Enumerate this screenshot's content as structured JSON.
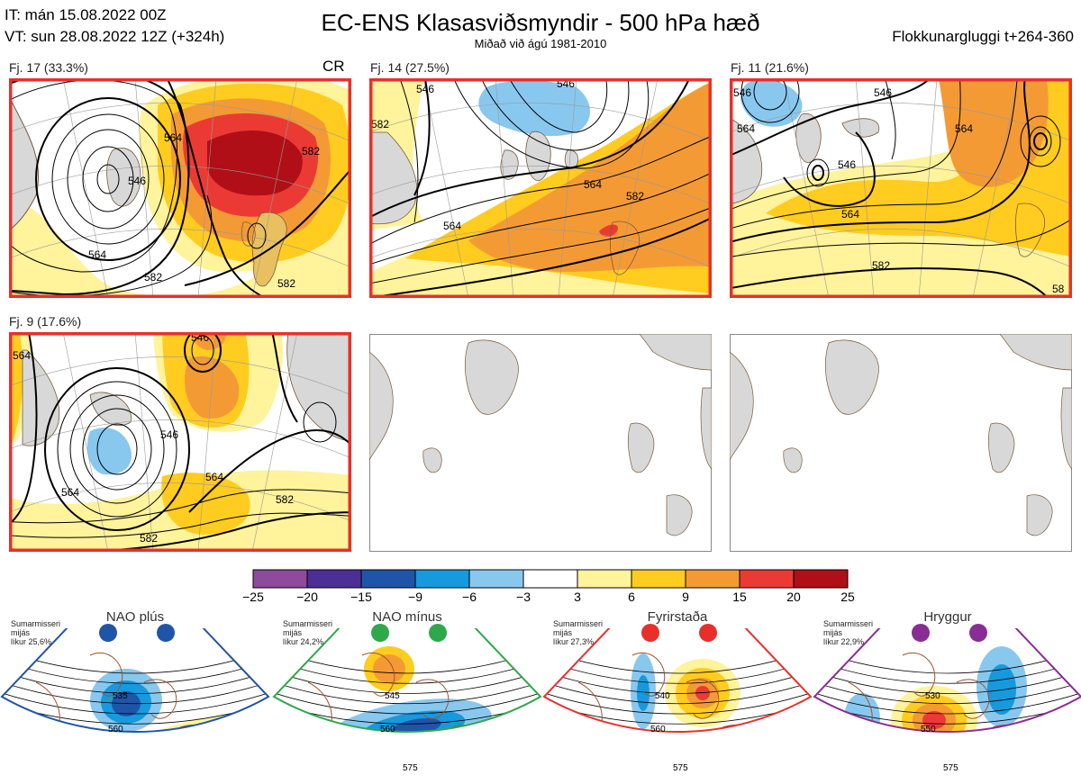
{
  "header": {
    "it_line": "IT: mán 15.08.2022 00Z",
    "vt_line": "VT: sun 28.08.2022 12Z  (+324h)",
    "title": "EC-ENS Klasasviðsmyndir - 500 hPa hæð",
    "subtitle": "Miðað við ágú 1981-2010",
    "window": "Flokkunargluggi t+264-360"
  },
  "panels": [
    {
      "label": "Fj. 17 (33.3%)",
      "tag": "CR"
    },
    {
      "label": "Fj. 14 (27.5%)"
    },
    {
      "label": "Fj. 11 (21.6%)"
    },
    {
      "label": "Fj. 9 (17.6%)"
    }
  ],
  "colors": {
    "frame": "#e8302a",
    "land": "#d8d8d8",
    "coast": "#7a5a3a"
  },
  "chart_data": {
    "type": "heatmap",
    "colorbar": {
      "ticks": [
        "−25",
        "−20",
        "−15",
        "−9",
        "−6",
        "−3",
        "3",
        "6",
        "9",
        "15",
        "20",
        "25"
      ],
      "colors": [
        "#8e4a9c",
        "#4b2f96",
        "#1f55a8",
        "#1799dd",
        "#88c8ef",
        "#ffffff",
        "#fff39b",
        "#ffcc1f",
        "#f49a35",
        "#eb3a33",
        "#b00f17"
      ]
    },
    "contour_labels": {
      "p1": [
        "546",
        "564",
        "564",
        "582",
        "582",
        "582"
      ],
      "p2": [
        "546",
        "582",
        "564",
        "564",
        "582",
        "546"
      ],
      "p3": [
        "546",
        "546",
        "564",
        "564",
        "564",
        "582",
        "546",
        "58"
      ],
      "p4": [
        "564",
        "546",
        "564",
        "564",
        "582",
        "582",
        "546"
      ]
    }
  },
  "regimes": [
    {
      "name": "NAO plús",
      "season": "Sumarmisseri",
      "avg": "mijás",
      "prob": "líkur 25,6%",
      "color": "#1f55a8",
      "labels": [
        "535",
        "560"
      ]
    },
    {
      "name": "NAO mínus",
      "season": "Sumarmisseri",
      "avg": "mijás",
      "prob": "líkur 24,2%",
      "color": "#2ea84a",
      "labels": [
        "545",
        "560",
        "575"
      ]
    },
    {
      "name": "Fyrirstaða",
      "season": "Sumarmisseri",
      "avg": "mijás",
      "prob": "líkur 27,3%",
      "color": "#e8302a",
      "labels": [
        "540",
        "560",
        "575"
      ]
    },
    {
      "name": "Hryggur",
      "season": "Sumarmisseri",
      "avg": "mijás",
      "prob": "líkur 22,9%",
      "color": "#8a2c96",
      "labels": [
        "530",
        "550",
        "575"
      ]
    }
  ]
}
